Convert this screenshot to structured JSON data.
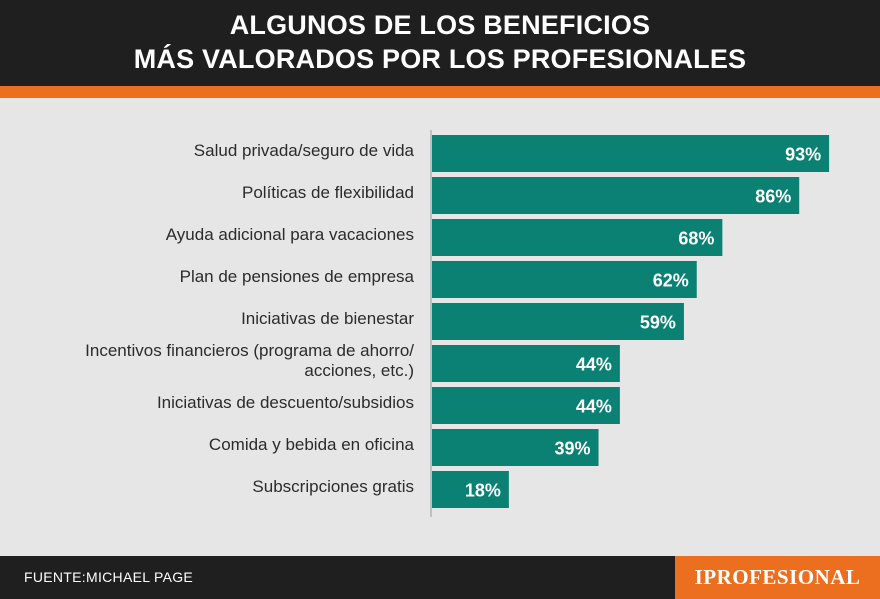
{
  "header": {
    "title_line1": "ALGUNOS DE LOS BENEFICIOS",
    "title_line2": "MÁS VALORADOS POR LOS PROFESIONALES"
  },
  "colors": {
    "header_bg": "#1f1f1f",
    "accent": "#ec6f1f",
    "bar": "#0a8172",
    "background": "#e6e6e6"
  },
  "chart_data": {
    "type": "bar",
    "orientation": "horizontal",
    "title": "ALGUNOS DE LOS BENEFICIOS MÁS VALORADOS POR LOS PROFESIONALES",
    "categories": [
      "Salud privada/seguro de vida",
      "Políticas de flexibilidad",
      "Ayuda adicional para vacaciones",
      "Plan de pensiones de empresa",
      "Iniciativas de bienestar",
      "Incentivos financieros (programa de ahorro/\nacciones, etc.)",
      "Iniciativas de descuento/subsidios",
      "Comida y bebida en oficina",
      "Subscripciones gratis"
    ],
    "values": [
      93,
      86,
      68,
      62,
      59,
      44,
      44,
      39,
      18
    ],
    "value_labels": [
      "93%",
      "86%",
      "68%",
      "62%",
      "59%",
      "44%",
      "44%",
      "39%",
      "18%"
    ],
    "unit": "%",
    "xlim": [
      0,
      100
    ],
    "xlabel": "",
    "ylabel": "",
    "grid": false,
    "legend": "none"
  },
  "footer": {
    "source": "FUENTE:MICHAEL PAGE",
    "logo": "IPROFESIONAL"
  }
}
